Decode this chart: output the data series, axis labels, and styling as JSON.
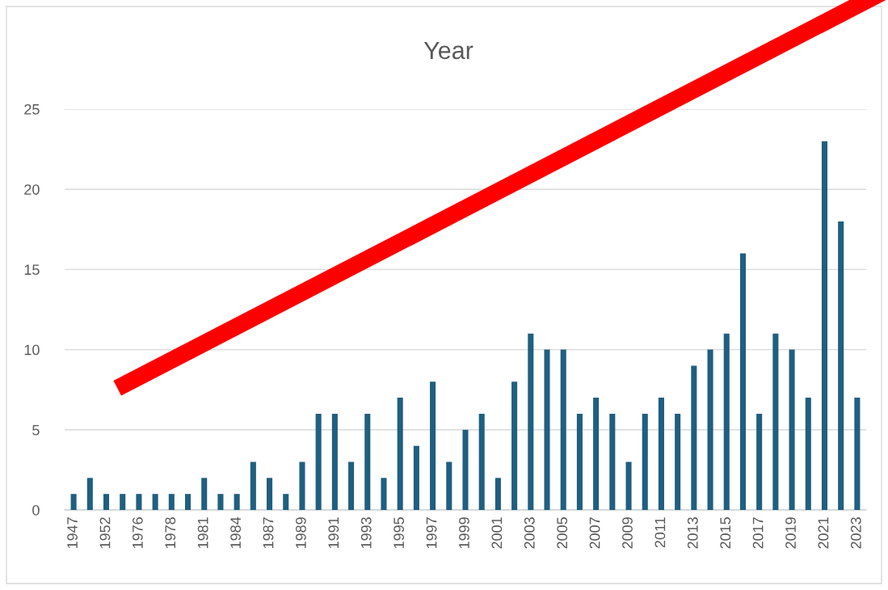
{
  "chart_data": {
    "type": "bar",
    "title": "Year",
    "categories": [
      "1947",
      null,
      "1952",
      null,
      "1976",
      null,
      "1978",
      null,
      "1981",
      null,
      "1984",
      null,
      "1987",
      null,
      "1989",
      null,
      "1991",
      null,
      "1993",
      null,
      "1995",
      null,
      "1997",
      null,
      "1999",
      null,
      "2001",
      null,
      "2003",
      null,
      "2005",
      null,
      "2007",
      null,
      "2009",
      null,
      "2011",
      null,
      "2013",
      null,
      "2015",
      null,
      "2017",
      null,
      "2019",
      null,
      "2021",
      null,
      "2023"
    ],
    "values": [
      1,
      2,
      1,
      1,
      1,
      1,
      1,
      1,
      2,
      1,
      1,
      3,
      2,
      1,
      3,
      6,
      6,
      3,
      6,
      2,
      7,
      4,
      8,
      3,
      5,
      6,
      2,
      8,
      11,
      10,
      10,
      6,
      7,
      6,
      3,
      6,
      7,
      6,
      9,
      10,
      11,
      16,
      6,
      11,
      10,
      7,
      23,
      18,
      7
    ],
    "color": "#1f5f80",
    "ylim": [
      0,
      25
    ],
    "yticks": [
      0,
      5,
      10,
      15,
      20,
      25
    ],
    "grid": "y"
  }
}
